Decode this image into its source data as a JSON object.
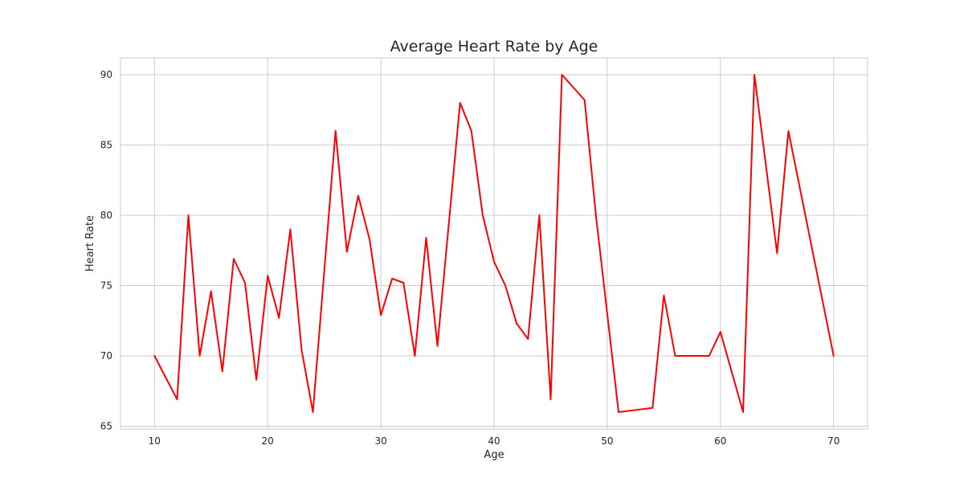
{
  "chart_data": {
    "type": "line",
    "title": "Average Heart Rate by Age",
    "xlabel": "Age",
    "ylabel": "Heart Rate",
    "xlim": [
      7,
      73
    ],
    "ylim": [
      64.8,
      91.2
    ],
    "xticks": [
      10,
      20,
      30,
      40,
      50,
      60,
      70
    ],
    "yticks": [
      65,
      70,
      75,
      80,
      85,
      90
    ],
    "grid": true,
    "legend": "none",
    "series": [
      {
        "color": "#ff0000",
        "x": [
          10,
          12,
          13,
          14,
          15,
          16,
          17,
          18,
          19,
          20,
          21,
          22,
          23,
          24,
          26,
          27,
          28,
          29,
          30,
          31,
          32,
          33,
          34,
          35,
          37,
          38,
          39,
          40,
          41,
          42,
          43,
          44,
          45,
          46,
          48,
          49,
          51,
          54,
          55,
          56,
          59,
          60,
          62,
          63,
          65,
          66,
          70
        ],
        "y": [
          70,
          66.9,
          80,
          70,
          74.6,
          68.9,
          76.9,
          75.2,
          68.3,
          75.7,
          72.7,
          79,
          70.4,
          66,
          86,
          77.4,
          81.4,
          78.3,
          72.9,
          75.5,
          75.2,
          70,
          78.4,
          70.7,
          88,
          86,
          80,
          76.7,
          75,
          72.3,
          71.2,
          80,
          66.9,
          90,
          88.2,
          80,
          66,
          66.3,
          74.3,
          70,
          70,
          71.7,
          66,
          90,
          77.3,
          86,
          70
        ]
      }
    ]
  }
}
